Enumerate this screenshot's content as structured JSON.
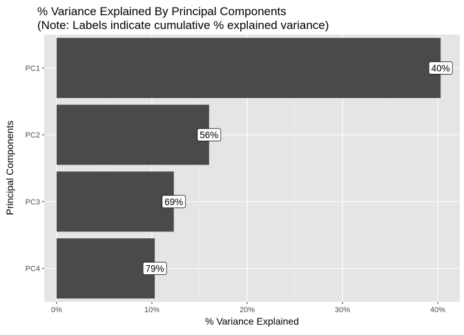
{
  "chart_data": {
    "type": "bar",
    "orientation": "horizontal",
    "title": "% Variance Explained By Principal Components",
    "subtitle": "(Note: Labels indicate cumulative % explained variance)",
    "xlabel": "% Variance Explained",
    "ylabel": "Principal Components",
    "categories": [
      "PC1",
      "PC2",
      "PC3",
      "PC4"
    ],
    "values": [
      40.3,
      16.0,
      12.3,
      10.3
    ],
    "data_labels": [
      "40%",
      "56%",
      "69%",
      "79%"
    ],
    "xlim": [
      0,
      42
    ],
    "xticks": [
      0,
      10,
      20,
      30,
      40
    ],
    "xtick_labels": [
      "0%",
      "10%",
      "20%",
      "30%",
      "40%"
    ],
    "grid": true,
    "colors": {
      "bar": "#4a4a4a",
      "panel": "#e5e5e5",
      "grid": "#ffffff"
    }
  }
}
